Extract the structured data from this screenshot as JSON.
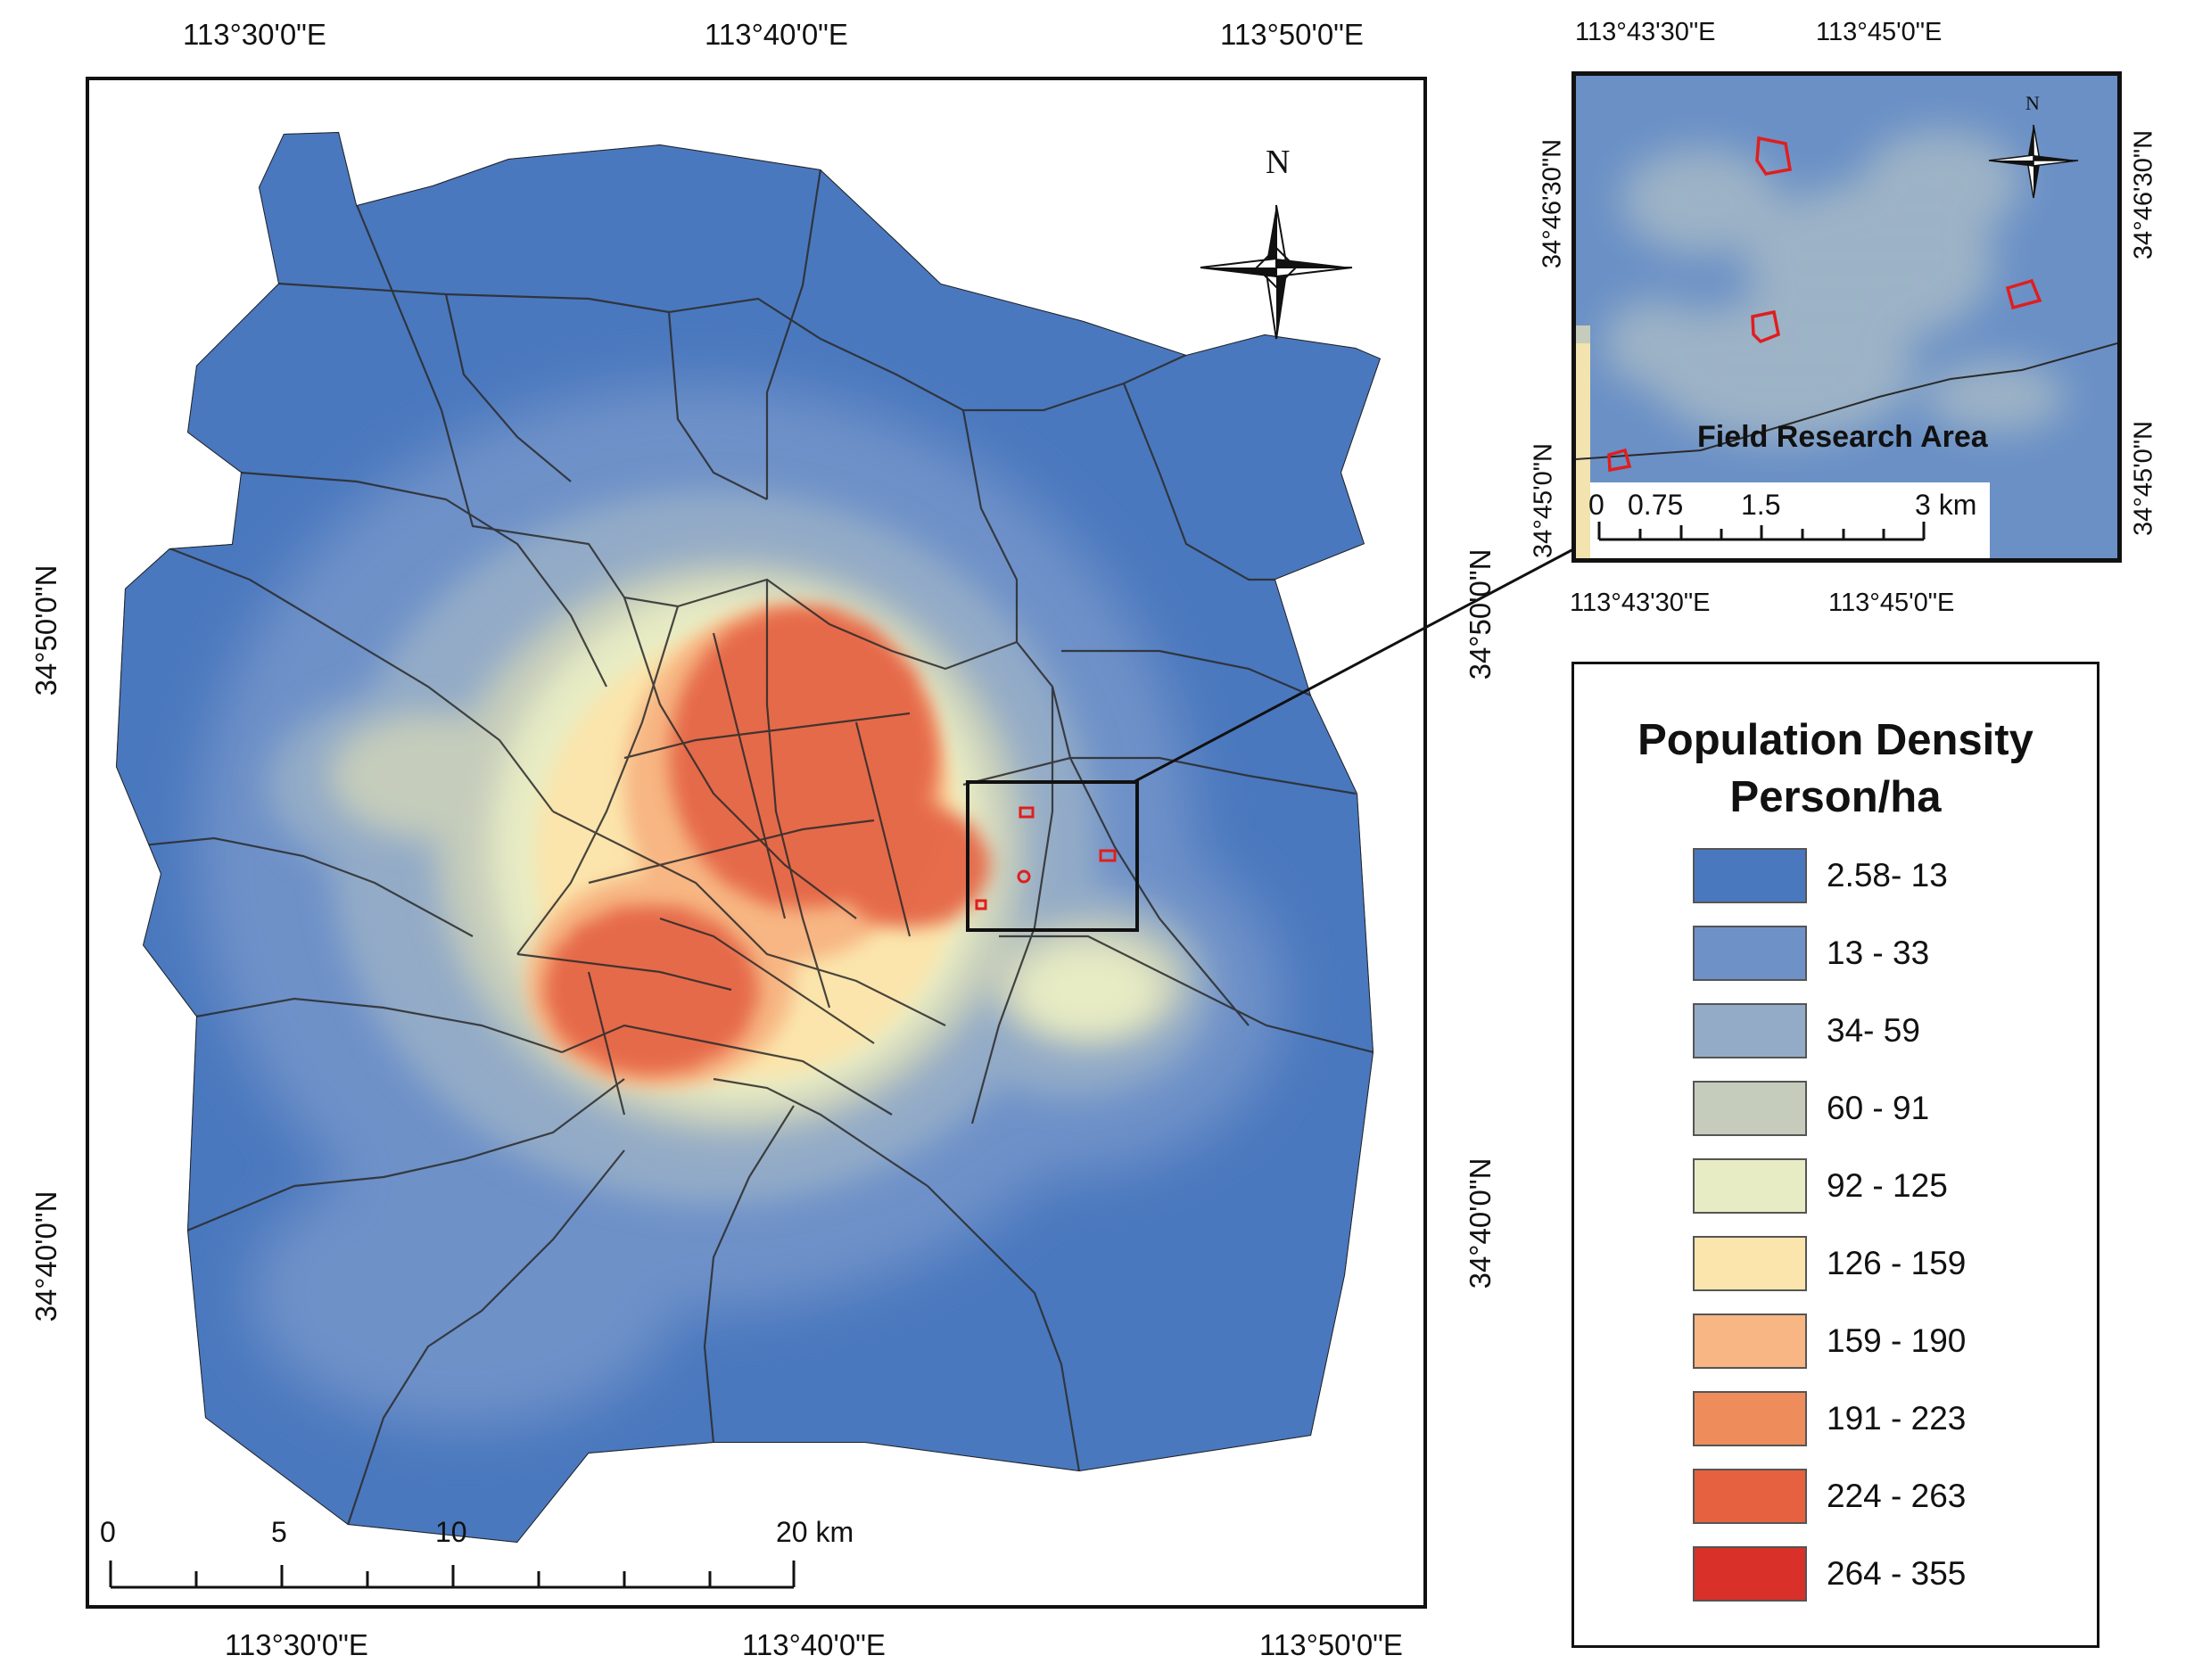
{
  "main_map": {
    "lon_top": [
      "113°30'0\"E",
      "113°40'0\"E",
      "113°50'0\"E"
    ],
    "lon_bottom": [
      "113°30'0\"E",
      "113°40'0\"E",
      "113°50'0\"E"
    ],
    "lat_left": [
      "34°50'0\"N",
      "34°40'0\"N"
    ],
    "lat_right": [
      "34°50'0\"N",
      "34°40'0\"N"
    ],
    "north_label": "N",
    "scale_ticks": [
      "0",
      "5",
      "10",
      "20 km"
    ]
  },
  "inset_map": {
    "lon_top": [
      "113°43'30\"E",
      "113°45'0\"E"
    ],
    "lon_bottom": [
      "113°43'30\"E",
      "113°45'0\"E"
    ],
    "lat_left": [
      "34°46'30\"N",
      "34°45'0\"N"
    ],
    "lat_right": [
      "34°46'30\"N",
      "34°45'0\"N"
    ],
    "north_label": "N",
    "title": "Field Research Area",
    "scale_ticks": [
      "0",
      "0.75",
      "1.5",
      "3 km"
    ]
  },
  "legend": {
    "title_line1": "Population Density",
    "title_line2": "Person/ha",
    "items": [
      {
        "label": "2.58- 13",
        "color": "#4a78be"
      },
      {
        "label": "13 - 33",
        "color": "#6e91c8"
      },
      {
        "label": "34- 59",
        "color": "#93abc7"
      },
      {
        "label": "60 - 91",
        "color": "#c5ccbb"
      },
      {
        "label": "92 - 125",
        "color": "#e8ecc4"
      },
      {
        "label": "126 - 159",
        "color": "#fbe5ac"
      },
      {
        "label": "159 - 190",
        "color": "#f7b683"
      },
      {
        "label": "191 - 223",
        "color": "#ef8c5c"
      },
      {
        "label": "224 - 263",
        "color": "#e6613f"
      },
      {
        "label": "264 - 355",
        "color": "#d9302a"
      }
    ]
  }
}
